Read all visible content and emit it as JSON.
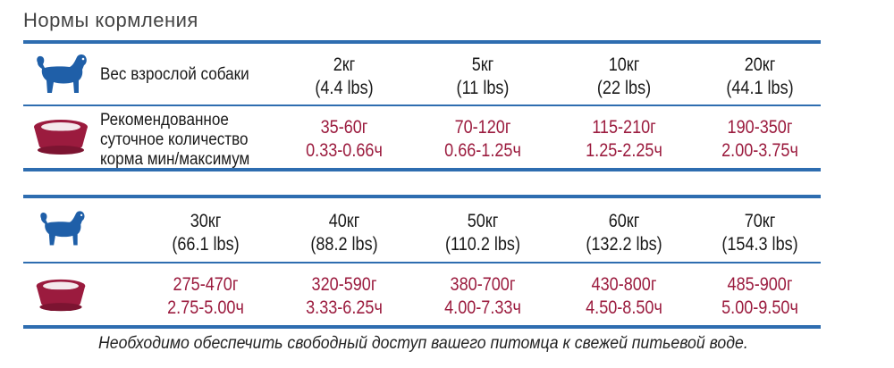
{
  "title": "Нормы кормления",
  "table1": {
    "weight_label": "Вес взрослой собаки",
    "food_label_lines": [
      "Рекомендованное",
      "суточное количество",
      "корма мин/максимум"
    ],
    "weights": [
      {
        "kg": "2кг",
        "lbs": "(4.4 lbs)"
      },
      {
        "kg": "5кг",
        "lbs": "(11 lbs)"
      },
      {
        "kg": "10кг",
        "lbs": "(22 lbs)"
      },
      {
        "kg": "20кг",
        "lbs": "(44.1 lbs)"
      }
    ],
    "food": [
      {
        "grams": "35-60г",
        "cups": "0.33-0.66ч"
      },
      {
        "grams": "70-120г",
        "cups": "0.66-1.25ч"
      },
      {
        "grams": "115-210г",
        "cups": "1.25-2.25ч"
      },
      {
        "grams": "190-350г",
        "cups": "2.00-3.75ч"
      }
    ]
  },
  "table2": {
    "weights": [
      {
        "kg": "30кг",
        "lbs": "(66.1 lbs)"
      },
      {
        "kg": "40кг",
        "lbs": "(88.2 lbs)"
      },
      {
        "kg": "50кг",
        "lbs": "(110.2 lbs)"
      },
      {
        "kg": "60кг",
        "lbs": "(132.2 lbs)"
      },
      {
        "kg": "70кг",
        "lbs": "(154.3 lbs)"
      }
    ],
    "food": [
      {
        "grams": "275-470г",
        "cups": "2.75-5.00ч"
      },
      {
        "grams": "320-590г",
        "cups": "3.33-6.25ч"
      },
      {
        "grams": "380-700г",
        "cups": "4.00-7.33ч"
      },
      {
        "grams": "430-800г",
        "cups": "4.50-8.50ч"
      },
      {
        "grams": "485-900г",
        "cups": "5.00-9.50ч"
      }
    ]
  },
  "note": "Необходимо обеспечить свободный доступ  вашего питомца к свежей питьевой воде.",
  "colors": {
    "rule": "#2e6db0",
    "dog": "#1f5fa8",
    "bowl": "#9b1b3e",
    "food_text": "#9b1b3e"
  },
  "icons": {
    "dog": "dog-icon",
    "bowl": "food-bowl-icon"
  }
}
